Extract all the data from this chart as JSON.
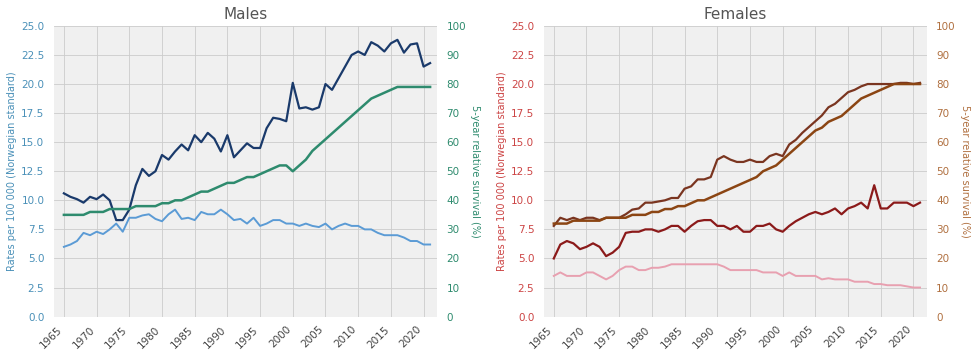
{
  "years": [
    1965,
    1966,
    1967,
    1968,
    1969,
    1970,
    1971,
    1972,
    1973,
    1974,
    1975,
    1976,
    1977,
    1978,
    1979,
    1980,
    1981,
    1982,
    1983,
    1984,
    1985,
    1986,
    1987,
    1988,
    1989,
    1990,
    1991,
    1992,
    1993,
    1994,
    1995,
    1996,
    1997,
    1998,
    1999,
    2000,
    2001,
    2002,
    2003,
    2004,
    2005,
    2006,
    2007,
    2008,
    2009,
    2010,
    2011,
    2012,
    2013,
    2014,
    2015,
    2016,
    2017,
    2018,
    2019,
    2020,
    2021
  ],
  "males_incidence": [
    10.6,
    10.3,
    10.1,
    9.8,
    10.3,
    10.1,
    10.5,
    10.0,
    8.3,
    8.3,
    9.2,
    11.3,
    12.7,
    12.1,
    12.5,
    13.9,
    13.5,
    14.2,
    14.8,
    14.3,
    15.6,
    15.0,
    15.8,
    15.3,
    14.2,
    15.6,
    13.7,
    14.3,
    14.9,
    14.5,
    14.5,
    16.2,
    17.1,
    17.0,
    16.8,
    20.1,
    17.9,
    18.0,
    17.8,
    18.0,
    20.0,
    19.5,
    20.5,
    21.5,
    22.5,
    22.8,
    22.5,
    23.6,
    23.3,
    22.8,
    23.5,
    23.8,
    22.7,
    23.4,
    23.5,
    21.5,
    21.8
  ],
  "males_mortality": [
    6.0,
    6.2,
    6.5,
    7.2,
    7.0,
    7.3,
    7.1,
    7.5,
    8.0,
    7.3,
    8.5,
    8.5,
    8.7,
    8.8,
    8.4,
    8.2,
    8.8,
    9.2,
    8.4,
    8.5,
    8.3,
    9.0,
    8.8,
    8.8,
    9.2,
    8.8,
    8.3,
    8.4,
    8.0,
    8.5,
    7.8,
    8.0,
    8.3,
    8.3,
    8.0,
    8.0,
    7.8,
    8.0,
    7.8,
    7.7,
    8.0,
    7.5,
    7.8,
    8.0,
    7.8,
    7.8,
    7.5,
    7.5,
    7.2,
    7.0,
    7.0,
    7.0,
    6.8,
    6.5,
    6.5,
    6.2,
    6.2
  ],
  "males_survival_pct": [
    35,
    35,
    35,
    35,
    36,
    36,
    36,
    37,
    37,
    37,
    37,
    38,
    38,
    38,
    38,
    39,
    39,
    40,
    40,
    41,
    42,
    43,
    43,
    44,
    45,
    46,
    46,
    47,
    48,
    48,
    49,
    50,
    51,
    52,
    52,
    50,
    52,
    54,
    57,
    59,
    61,
    63,
    65,
    67,
    69,
    71,
    73,
    75,
    76,
    77,
    78,
    79,
    79,
    79,
    79,
    79,
    79
  ],
  "females_incidence": [
    7.8,
    8.5,
    8.3,
    8.5,
    8.3,
    8.5,
    8.5,
    8.3,
    8.5,
    8.5,
    8.5,
    8.8,
    9.2,
    9.3,
    9.8,
    9.8,
    9.9,
    10.0,
    10.2,
    10.2,
    11.0,
    11.2,
    11.8,
    11.8,
    12.0,
    13.5,
    13.8,
    13.5,
    13.3,
    13.3,
    13.5,
    13.3,
    13.3,
    13.8,
    14.0,
    13.8,
    14.8,
    15.2,
    15.8,
    16.3,
    16.8,
    17.3,
    18.0,
    18.3,
    18.8,
    19.3,
    19.5,
    19.8,
    20.0,
    20.0,
    20.0,
    20.0,
    20.0,
    20.1,
    20.1,
    20.0,
    20.1
  ],
  "females_dark_red": [
    5.0,
    6.2,
    6.5,
    6.3,
    5.8,
    6.0,
    6.3,
    6.0,
    5.2,
    5.5,
    6.0,
    7.2,
    7.3,
    7.3,
    7.5,
    7.5,
    7.3,
    7.5,
    7.8,
    7.8,
    7.3,
    7.8,
    8.2,
    8.3,
    8.3,
    7.8,
    7.8,
    7.5,
    7.8,
    7.3,
    7.3,
    7.8,
    7.8,
    8.0,
    7.5,
    7.3,
    7.8,
    8.2,
    8.5,
    8.8,
    9.0,
    8.8,
    9.0,
    9.3,
    8.8,
    9.3,
    9.5,
    9.8,
    9.3,
    11.3,
    9.3,
    9.3,
    9.8,
    9.8,
    9.8,
    9.5,
    9.8
  ],
  "females_mortality": [
    3.5,
    3.8,
    3.5,
    3.5,
    3.5,
    3.8,
    3.8,
    3.5,
    3.2,
    3.5,
    4.0,
    4.3,
    4.3,
    4.0,
    4.0,
    4.2,
    4.2,
    4.3,
    4.5,
    4.5,
    4.5,
    4.5,
    4.5,
    4.5,
    4.5,
    4.5,
    4.3,
    4.0,
    4.0,
    4.0,
    4.0,
    4.0,
    3.8,
    3.8,
    3.8,
    3.5,
    3.8,
    3.5,
    3.5,
    3.5,
    3.5,
    3.2,
    3.3,
    3.2,
    3.2,
    3.2,
    3.0,
    3.0,
    3.0,
    2.8,
    2.8,
    2.7,
    2.7,
    2.7,
    2.6,
    2.5,
    2.5
  ],
  "females_survival_pct": [
    32,
    32,
    32,
    33,
    33,
    33,
    33,
    33,
    34,
    34,
    34,
    34,
    35,
    35,
    35,
    36,
    36,
    37,
    37,
    38,
    38,
    39,
    40,
    40,
    41,
    42,
    43,
    44,
    45,
    46,
    47,
    48,
    50,
    51,
    52,
    54,
    56,
    58,
    60,
    62,
    64,
    65,
    67,
    68,
    69,
    71,
    73,
    75,
    76,
    77,
    78,
    79,
    80,
    80,
    80,
    80,
    80
  ],
  "males_incidence_color": "#1a3a6b",
  "males_mortality_color": "#5b9bd5",
  "males_survival_color": "#2e8b6e",
  "females_incidence_color": "#7a3520",
  "females_dark_red_color": "#8b1a1a",
  "females_mortality_color": "#e8a0b0",
  "females_survival_color": "#8b4513",
  "title_males": "Males",
  "title_females": "Females",
  "ylabel_left": "Rates per 100 000 (Norwegian standard)",
  "ylabel_right": "5-year relative survival (%)",
  "ylim_left": [
    0,
    25
  ],
  "ylim_right": [
    0,
    100
  ],
  "yticks_left": [
    0.0,
    2.5,
    5.0,
    7.5,
    10.0,
    12.5,
    15.0,
    17.5,
    20.0,
    22.5,
    25.0
  ],
  "yticks_right": [
    0,
    10,
    20,
    30,
    40,
    50,
    60,
    70,
    80,
    90,
    100
  ],
  "xticks": [
    1965,
    1970,
    1975,
    1980,
    1985,
    1990,
    1995,
    2000,
    2005,
    2010,
    2015,
    2020
  ],
  "background_color": "#f0f0f0",
  "grid_color": "#cccccc",
  "title_color": "#555555",
  "axis_color_left_males": "#4a90b8",
  "axis_color_right_males": "#2e8b6e",
  "axis_color_left_females": "#cc4444",
  "axis_color_right_females": "#b07040"
}
